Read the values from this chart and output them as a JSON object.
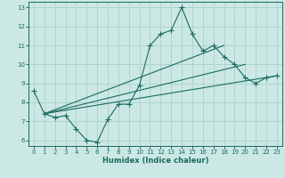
{
  "xlabel": "Humidex (Indice chaleur)",
  "bg_color": "#cce8e4",
  "grid_color": "#aed4cf",
  "line_color": "#1a6b60",
  "xlim": [
    -0.5,
    23.5
  ],
  "ylim": [
    5.7,
    13.3
  ],
  "xticks": [
    0,
    1,
    2,
    3,
    4,
    5,
    6,
    7,
    8,
    9,
    10,
    11,
    12,
    13,
    14,
    15,
    16,
    17,
    18,
    19,
    20,
    21,
    22,
    23
  ],
  "yticks": [
    6,
    7,
    8,
    9,
    10,
    11,
    12,
    13
  ],
  "line1_x": [
    0,
    1,
    2,
    3,
    4,
    5,
    6,
    7,
    8,
    9,
    10,
    11,
    12,
    13,
    14,
    15,
    16,
    17,
    18,
    19,
    20,
    21,
    22,
    23
  ],
  "line1_y": [
    8.6,
    7.4,
    7.2,
    7.3,
    6.6,
    6.0,
    5.9,
    7.1,
    7.9,
    7.9,
    8.9,
    11.0,
    11.6,
    11.8,
    13.0,
    11.6,
    10.7,
    11.0,
    10.4,
    10.0,
    9.3,
    9.0,
    9.3,
    9.4
  ],
  "line2_x": [
    1,
    23
  ],
  "line2_y": [
    7.4,
    9.4
  ],
  "line3_x": [
    1,
    20
  ],
  "line3_y": [
    7.4,
    10.0
  ],
  "line4_x": [
    1,
    18
  ],
  "line4_y": [
    7.4,
    11.0
  ]
}
